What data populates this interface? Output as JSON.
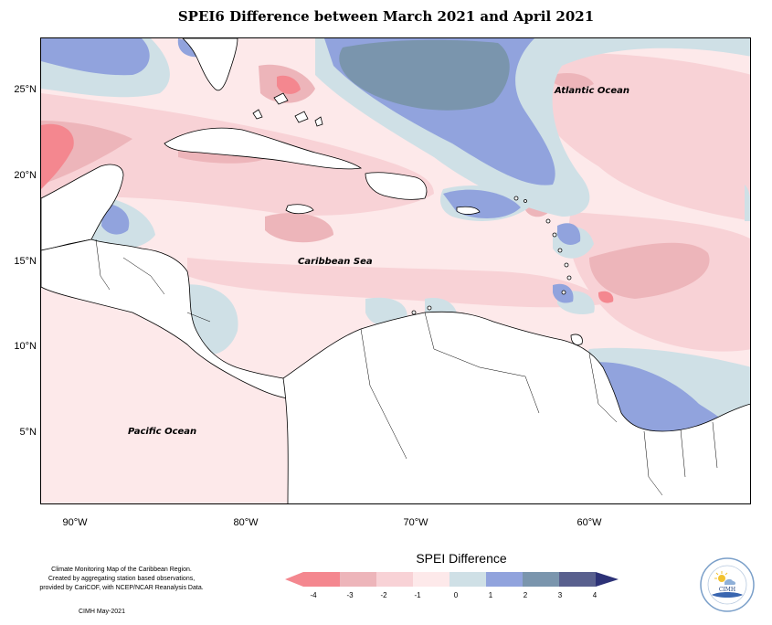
{
  "title": "SPEI6 Difference between March 2021 and April 2021",
  "map": {
    "ocean_labels": {
      "atlantic": "Atlantic Ocean",
      "caribbean": "Caribbean Sea",
      "pacific": "Pacific Ocean"
    },
    "lat_ticks": [
      "25°N",
      "20°N",
      "15°N",
      "10°N",
      "5°N"
    ],
    "lon_ticks": [
      "90°W",
      "80°W",
      "70°W",
      "60°W"
    ],
    "colors": {
      "land": "#ffffff",
      "coast": "#000000"
    }
  },
  "legend": {
    "title": "SPEI Difference",
    "ticks": [
      "-4",
      "-3",
      "-2",
      "-1",
      "0",
      "1",
      "2",
      "3",
      "4"
    ],
    "colors": [
      "#f4878f",
      "#edb5ba",
      "#f8d2d6",
      "#fde9ea",
      "#cfe0e6",
      "#91a3dd",
      "#7a95ad",
      "#59608e",
      "#2d3277"
    ]
  },
  "credits": {
    "lines": [
      "Climate Monitoring Map of the Caribbean Region.",
      "Created by aggregating station based observations,",
      "provided by CariCOF, with NCEP/NCAR Reanalysis Data."
    ],
    "date": "CIMH May-2021"
  },
  "logo": {
    "text": "CIMH",
    "icon": "cimh-logo-icon"
  }
}
